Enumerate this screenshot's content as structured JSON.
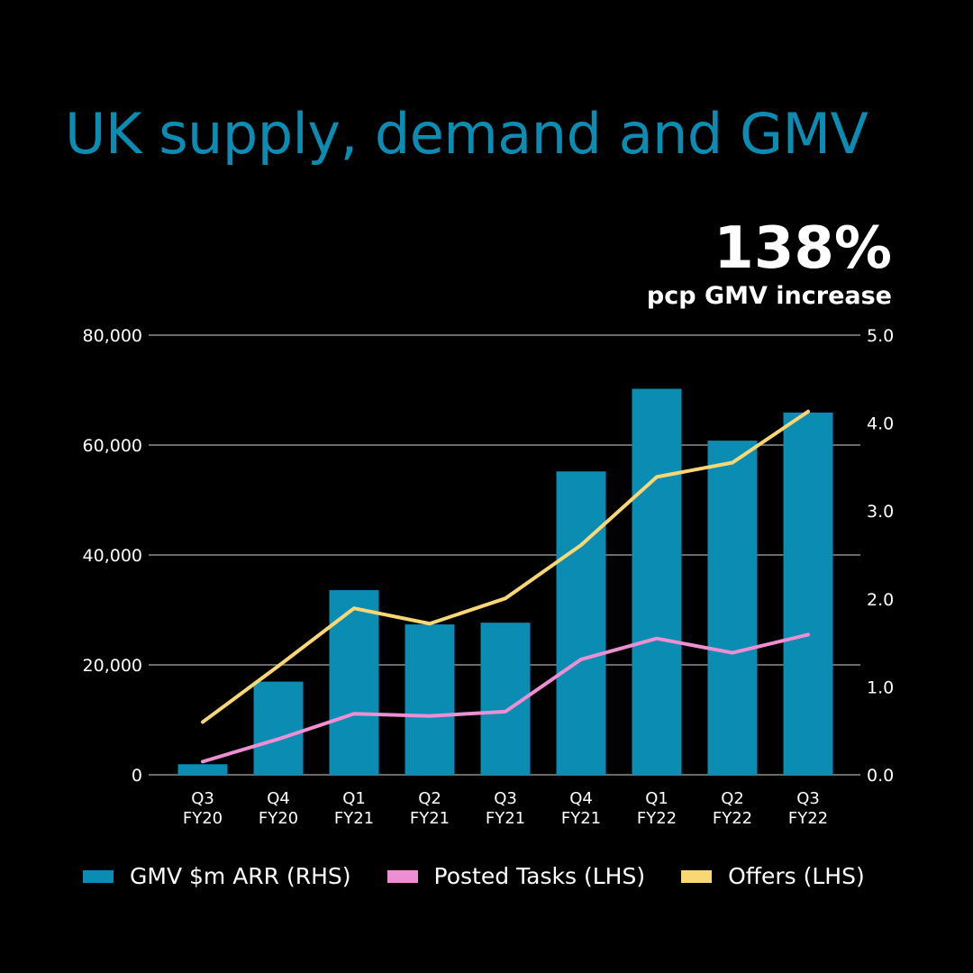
{
  "title": "UK supply, demand and GMV",
  "kpi": {
    "value": "138%",
    "label": "pcp GMV increase"
  },
  "colors": {
    "gmv": "#0b8db3",
    "tasks": "#ee8fd3",
    "offers": "#f9d775",
    "grid": "#6a6a6a",
    "title": "#0b8db3"
  },
  "chart_data": {
    "type": "bar",
    "title": "UK supply, demand and GMV",
    "categories": [
      [
        "Q3",
        "FY20"
      ],
      [
        "Q4",
        "FY20"
      ],
      [
        "Q1",
        "FY21"
      ],
      [
        "Q2",
        "FY21"
      ],
      [
        "Q3",
        "FY21"
      ],
      [
        "Q4",
        "FY21"
      ],
      [
        "Q1",
        "FY22"
      ],
      [
        "Q2",
        "FY22"
      ],
      [
        "Q3",
        "FY22"
      ]
    ],
    "left_axis": {
      "min": 0,
      "max": 80000,
      "ticks": [
        0,
        20000,
        40000,
        60000,
        80000
      ],
      "tick_labels": [
        "0",
        "20,000",
        "40,000",
        "60,000",
        "80,000"
      ]
    },
    "right_axis": {
      "min": 0,
      "max": 5,
      "ticks": [
        0,
        1,
        2,
        3,
        4,
        5
      ],
      "tick_labels": [
        "0.0",
        "1.0",
        "2.0",
        "3.0",
        "4.0",
        "5.0"
      ]
    },
    "series": [
      {
        "name": "GMV $m ARR (RHS)",
        "kind": "bar",
        "axis": "right",
        "values": [
          0.12,
          1.06,
          2.1,
          1.71,
          1.73,
          3.45,
          4.39,
          3.8,
          4.12
        ]
      },
      {
        "name": "Posted Tasks (LHS)",
        "kind": "line",
        "axis": "left",
        "values": [
          2400,
          6500,
          11100,
          10700,
          11500,
          21000,
          24800,
          22200,
          25500
        ]
      },
      {
        "name": "Offers (LHS)",
        "kind": "line",
        "axis": "left",
        "values": [
          9600,
          19800,
          30300,
          27500,
          32100,
          41800,
          54200,
          56800,
          66100
        ]
      }
    ]
  },
  "legend": [
    {
      "label": "GMV $m ARR (RHS)",
      "color": "#0b8db3"
    },
    {
      "label": "Posted Tasks (LHS)",
      "color": "#ee8fd3"
    },
    {
      "label": "Offers (LHS)",
      "color": "#f9d775"
    }
  ]
}
